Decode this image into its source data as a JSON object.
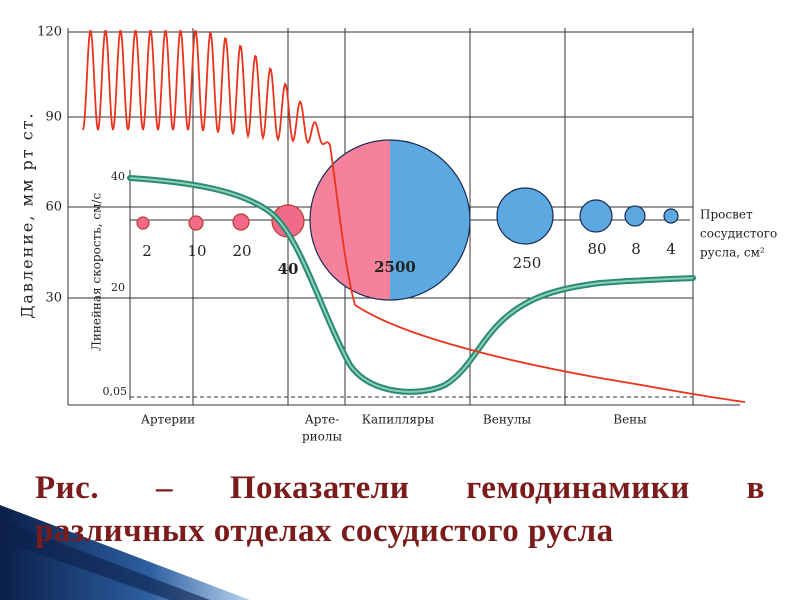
{
  "figure": {
    "y_axis_label": "Давление, мм рт ст.",
    "y_ticks": [
      "120",
      "90",
      "60",
      "30"
    ],
    "velocity_axis_label": "Линейная скорость, см/с",
    "velocity_ticks": [
      "40",
      "20",
      "0,05"
    ],
    "lumen_labels": [
      "2",
      "10",
      "20",
      "40",
      "2500",
      "250",
      "80",
      "8",
      "4"
    ],
    "lumen_caption": [
      "Просвет",
      "сосудистого",
      "русла, см²"
    ],
    "segments": [
      [
        "Артерии"
      ],
      [
        "Арте-",
        "риолы"
      ],
      [
        "Капилляры"
      ],
      [
        "Венулы"
      ],
      [
        "Вены"
      ]
    ]
  },
  "caption": {
    "lines": [
      "Рис. – Показатели гемодинамики в",
      "различных отделах сосудистого русла"
    ]
  }
}
